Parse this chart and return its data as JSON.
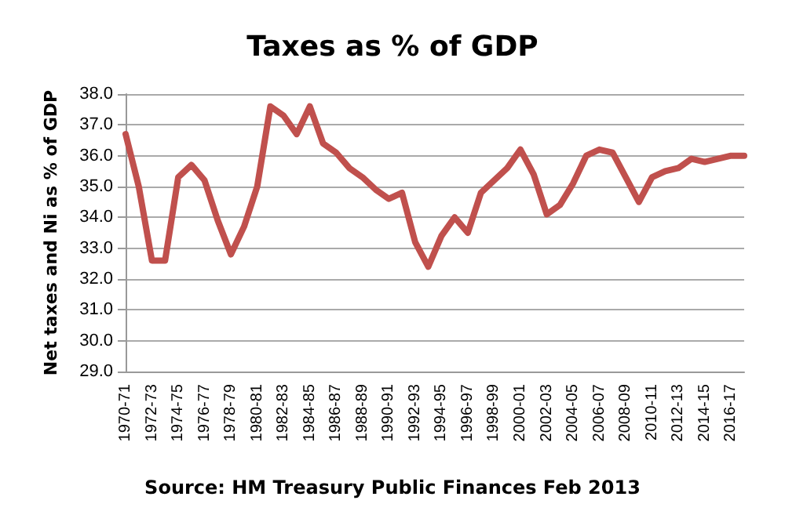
{
  "chart_data": {
    "type": "line",
    "title": "Taxes as % of GDP",
    "ylabel": "Net taxes and Ni as % of GDP",
    "categories": [
      "1970-71",
      null,
      "1972-73",
      null,
      "1974-75",
      null,
      "1976-77",
      null,
      "1978-79",
      null,
      "1980-81",
      null,
      "1982-83",
      null,
      "1984-85",
      null,
      "1986-87",
      null,
      "1988-89",
      null,
      "1990-91",
      null,
      "1992-93",
      null,
      "1994-95",
      null,
      "1996-97",
      null,
      "1998-99",
      null,
      "2000-01",
      null,
      "2002-03",
      null,
      "2004-05",
      null,
      "2006-07",
      null,
      "2008-09",
      null,
      "2010-11",
      null,
      "2012-13",
      null,
      "2014-15",
      null,
      "2016-17",
      null
    ],
    "series": [
      {
        "color": "#c0504d",
        "values": [
          36.7,
          35.0,
          32.6,
          32.6,
          35.3,
          35.7,
          35.2,
          33.9,
          32.8,
          33.7,
          35.0,
          37.6,
          37.3,
          36.7,
          37.6,
          36.4,
          36.1,
          35.6,
          35.3,
          34.9,
          34.6,
          34.8,
          33.2,
          32.4,
          33.4,
          34.0,
          33.5,
          34.8,
          35.2,
          35.6,
          36.2,
          35.4,
          34.1,
          34.4,
          35.1,
          36.0,
          36.2,
          36.1,
          35.3,
          34.5,
          35.3,
          35.5,
          35.6,
          35.9,
          35.8,
          35.9,
          36.0,
          36.0
        ]
      }
    ],
    "ylim": [
      29,
      38
    ],
    "yticks": [
      {
        "value": 29,
        "label": "29.0"
      },
      {
        "value": 30,
        "label": "30.0"
      },
      {
        "value": 31,
        "label": "31.0"
      },
      {
        "value": 32,
        "label": "32.0"
      },
      {
        "value": 33,
        "label": "33.0"
      },
      {
        "value": 34,
        "label": "34.0"
      },
      {
        "value": 35,
        "label": "35.0"
      },
      {
        "value": 36,
        "label": "36.0"
      },
      {
        "value": 37,
        "label": "37.0"
      },
      {
        "value": 38,
        "label": "38.0"
      }
    ],
    "grid": "y",
    "marker": "none",
    "line_style": "solid",
    "annotations": [
      "Source: HM Treasury Public Finances Feb 2013"
    ]
  }
}
